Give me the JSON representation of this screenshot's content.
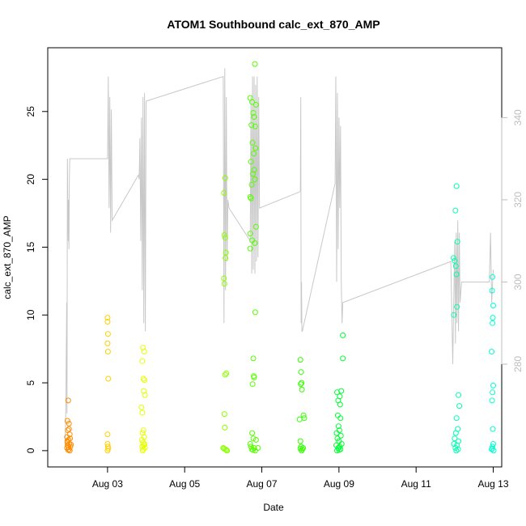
{
  "chart_data": {
    "type": "scatter",
    "title": "ATOM1 Southbound calc_ext_870_AMP",
    "xlabel": "Date",
    "ylabel": "calc_ext_870_AMP",
    "xlim": [
      1.45,
      13.22
    ],
    "ylim": [
      -1.2,
      29.7
    ],
    "y2lim": [
      255,
      357
    ],
    "x_ticks": [
      {
        "value": 3,
        "label": "Aug 03"
      },
      {
        "value": 5,
        "label": "Aug 05"
      },
      {
        "value": 7,
        "label": "Aug 07"
      },
      {
        "value": 9,
        "label": "Aug 09"
      },
      {
        "value": 11,
        "label": "Aug 11"
      },
      {
        "value": 13,
        "label": "Aug 13"
      }
    ],
    "y_ticks": [
      0,
      5,
      10,
      15,
      20,
      25
    ],
    "y2_ticks": [
      280,
      300,
      320,
      340
    ],
    "grid": false,
    "legend": "none",
    "line_color": "#c8c8c8",
    "series": [
      {
        "color": "#ff8c00",
        "points": [
          [
            1.98,
            3.7
          ],
          [
            1.96,
            2.2
          ],
          [
            2.0,
            2.0
          ],
          [
            1.97,
            1.5
          ],
          [
            2.02,
            1.2
          ],
          [
            1.95,
            1.0
          ],
          [
            2.03,
            0.9
          ],
          [
            1.99,
            0.8
          ],
          [
            1.96,
            0.6
          ],
          [
            2.01,
            0.5
          ],
          [
            1.97,
            0.4
          ],
          [
            2.04,
            0.3
          ],
          [
            1.95,
            0.2
          ],
          [
            2.0,
            0.1
          ],
          [
            1.98,
            0.05
          ],
          [
            2.02,
            0.0
          ],
          [
            1.96,
            0.7
          ],
          [
            2.05,
            0.45
          ],
          [
            1.99,
            0.25
          ],
          [
            2.0,
            1.6
          ]
        ]
      },
      {
        "color": "#ffcf00",
        "points": [
          [
            3.0,
            9.8
          ],
          [
            3.0,
            9.5
          ],
          [
            3.01,
            8.6
          ],
          [
            3.0,
            7.9
          ],
          [
            3.01,
            7.3
          ],
          [
            3.02,
            5.3
          ],
          [
            3.0,
            1.2
          ],
          [
            3.0,
            0.5
          ],
          [
            3.01,
            0.3
          ],
          [
            3.02,
            0.15
          ],
          [
            3.0,
            0.0
          ]
        ]
      },
      {
        "color": "#e6ff00",
        "points": [
          [
            3.92,
            7.6
          ],
          [
            3.95,
            7.3
          ],
          [
            3.9,
            6.6
          ],
          [
            3.93,
            5.3
          ],
          [
            3.96,
            5.2
          ],
          [
            3.94,
            4.4
          ],
          [
            3.97,
            4.1
          ],
          [
            3.88,
            3.2
          ],
          [
            3.9,
            2.8
          ],
          [
            3.93,
            1.5
          ],
          [
            3.91,
            1.3
          ],
          [
            3.95,
            1.0
          ],
          [
            3.89,
            0.8
          ],
          [
            3.92,
            0.6
          ],
          [
            3.96,
            0.5
          ],
          [
            3.94,
            0.4
          ],
          [
            3.9,
            0.3
          ],
          [
            3.97,
            0.2
          ],
          [
            3.93,
            0.1
          ],
          [
            3.91,
            0.0
          ]
        ]
      },
      {
        "color": "#8cff00",
        "points": [
          [
            6.05,
            20.1
          ],
          [
            6.02,
            19.0
          ],
          [
            6.03,
            15.9
          ],
          [
            6.05,
            15.7
          ],
          [
            6.07,
            14.6
          ],
          [
            6.06,
            14.2
          ],
          [
            6.02,
            12.7
          ],
          [
            6.03,
            12.3
          ],
          [
            6.08,
            5.7
          ],
          [
            6.05,
            5.6
          ],
          [
            6.03,
            2.7
          ],
          [
            6.04,
            1.7
          ],
          [
            6.0,
            0.2
          ],
          [
            6.05,
            0.1
          ],
          [
            6.08,
            0.05
          ],
          [
            6.1,
            0.0
          ],
          [
            6.02,
            0.15
          ]
        ]
      },
      {
        "color": "#55ff00",
        "points": [
          [
            6.82,
            28.5
          ],
          [
            6.7,
            26.0
          ],
          [
            6.75,
            25.7
          ],
          [
            6.85,
            25.5
          ],
          [
            6.78,
            24.9
          ],
          [
            6.8,
            24.6
          ],
          [
            6.73,
            24.0
          ],
          [
            6.83,
            23.9
          ],
          [
            6.76,
            22.7
          ],
          [
            6.84,
            22.3
          ],
          [
            6.79,
            21.9
          ],
          [
            6.72,
            21.3
          ],
          [
            6.8,
            20.7
          ],
          [
            6.77,
            20.4
          ],
          [
            6.82,
            20.0
          ],
          [
            6.74,
            19.6
          ],
          [
            6.7,
            18.7
          ],
          [
            6.72,
            18.6
          ],
          [
            6.85,
            16.5
          ],
          [
            6.7,
            16.0
          ],
          [
            6.75,
            15.5
          ],
          [
            6.82,
            15.3
          ],
          [
            6.7,
            14.9
          ],
          [
            6.83,
            10.2
          ],
          [
            6.78,
            6.8
          ],
          [
            6.79,
            5.5
          ],
          [
            6.8,
            5.4
          ],
          [
            6.76,
            4.9
          ],
          [
            6.75,
            1.3
          ],
          [
            6.78,
            0.9
          ],
          [
            6.85,
            0.8
          ],
          [
            6.7,
            0.5
          ],
          [
            6.72,
            0.3
          ],
          [
            6.8,
            0.2
          ],
          [
            6.74,
            0.1
          ],
          [
            6.77,
            0.05
          ],
          [
            6.83,
            0.0
          ],
          [
            6.9,
            0.2
          ]
        ]
      },
      {
        "color": "#33ff00",
        "points": [
          [
            8.0,
            6.7
          ],
          [
            8.02,
            5.8
          ],
          [
            8.03,
            5.0
          ],
          [
            8.01,
            4.9
          ],
          [
            8.04,
            4.5
          ],
          [
            8.08,
            2.6
          ],
          [
            8.1,
            2.4
          ],
          [
            7.98,
            2.3
          ],
          [
            8.0,
            0.7
          ],
          [
            8.02,
            0.3
          ],
          [
            8.0,
            0.15
          ],
          [
            8.05,
            0.1
          ],
          [
            8.03,
            0.0
          ],
          [
            8.07,
            0.2
          ]
        ]
      },
      {
        "color": "#00ff33",
        "points": [
          [
            9.1,
            8.5
          ],
          [
            9.1,
            6.8
          ],
          [
            9.06,
            4.4
          ],
          [
            8.95,
            4.3
          ],
          [
            9.02,
            4.0
          ],
          [
            8.98,
            3.7
          ],
          [
            9.03,
            3.4
          ],
          [
            8.97,
            2.6
          ],
          [
            9.04,
            2.4
          ],
          [
            8.99,
            1.8
          ],
          [
            9.01,
            1.5
          ],
          [
            8.94,
            1.3
          ],
          [
            9.05,
            1.1
          ],
          [
            8.96,
            0.9
          ],
          [
            9.0,
            0.7
          ],
          [
            9.07,
            0.5
          ],
          [
            8.93,
            0.4
          ],
          [
            9.02,
            0.3
          ],
          [
            8.98,
            0.2
          ],
          [
            9.04,
            0.1
          ],
          [
            8.95,
            0.0
          ],
          [
            9.0,
            0.05
          ]
        ]
      },
      {
        "color": "#00ffb0",
        "points": [
          [
            12.05,
            19.5
          ],
          [
            12.02,
            17.7
          ],
          [
            12.07,
            15.4
          ],
          [
            11.97,
            14.2
          ],
          [
            12.0,
            14.0
          ],
          [
            12.03,
            13.6
          ],
          [
            12.05,
            13.0
          ],
          [
            12.06,
            10.6
          ],
          [
            11.98,
            10.0
          ],
          [
            12.1,
            4.1
          ],
          [
            12.12,
            3.3
          ],
          [
            12.05,
            2.4
          ],
          [
            12.08,
            1.6
          ],
          [
            12.03,
            1.3
          ],
          [
            12.0,
            0.9
          ],
          [
            12.1,
            0.7
          ],
          [
            11.98,
            0.5
          ],
          [
            12.06,
            0.4
          ],
          [
            12.02,
            0.2
          ],
          [
            12.09,
            0.1
          ],
          [
            12.04,
            0.0
          ]
        ]
      },
      {
        "color": "#00ffd0",
        "points": [
          [
            12.98,
            12.8
          ],
          [
            12.97,
            11.8
          ],
          [
            13.0,
            10.7
          ],
          [
            12.99,
            9.8
          ],
          [
            12.98,
            9.4
          ],
          [
            12.96,
            7.3
          ],
          [
            13.0,
            4.8
          ],
          [
            12.98,
            4.3
          ],
          [
            12.97,
            3.7
          ],
          [
            12.99,
            1.6
          ],
          [
            13.0,
            0.5
          ],
          [
            12.98,
            0.3
          ],
          [
            12.96,
            0.1
          ],
          [
            13.01,
            0.0
          ],
          [
            12.97,
            0.15
          ]
        ]
      }
    ],
    "line": [
      [
        1.9,
        260
      ],
      [
        1.92,
        270
      ],
      [
        1.94,
        295
      ],
      [
        1.95,
        268
      ],
      [
        1.96,
        330
      ],
      [
        1.97,
        318
      ],
      [
        1.98,
        310
      ],
      [
        1.99,
        320
      ],
      [
        2.0,
        308
      ],
      [
        2.01,
        325
      ],
      [
        2.02,
        330
      ],
      [
        3.0,
        330
      ],
      [
        3.02,
        350
      ],
      [
        3.04,
        318
      ],
      [
        3.06,
        345
      ],
      [
        3.08,
        312
      ],
      [
        3.1,
        342
      ],
      [
        3.12,
        315
      ],
      [
        3.8,
        326
      ],
      [
        3.82,
        325
      ],
      [
        3.84,
        335
      ],
      [
        3.86,
        310
      ],
      [
        3.88,
        340
      ],
      [
        3.9,
        298
      ],
      [
        3.92,
        345
      ],
      [
        3.94,
        290
      ],
      [
        3.96,
        346
      ],
      [
        3.98,
        288
      ],
      [
        4.0,
        344
      ],
      [
        6.0,
        350
      ],
      [
        6.02,
        290
      ],
      [
        6.04,
        352
      ],
      [
        6.06,
        298
      ],
      [
        6.08,
        345
      ],
      [
        6.1,
        305
      ],
      [
        6.12,
        320
      ],
      [
        6.15,
        318
      ],
      [
        6.7,
        310
      ],
      [
        6.72,
        345
      ],
      [
        6.74,
        302
      ],
      [
        6.76,
        350
      ],
      [
        6.78,
        303
      ],
      [
        6.8,
        350
      ],
      [
        6.82,
        302
      ],
      [
        6.84,
        348
      ],
      [
        6.86,
        305
      ],
      [
        6.88,
        350
      ],
      [
        6.9,
        306
      ],
      [
        6.92,
        345
      ],
      [
        6.94,
        318
      ],
      [
        8.0,
        322
      ],
      [
        8.01,
        345
      ],
      [
        8.02,
        290
      ],
      [
        8.03,
        300
      ],
      [
        8.04,
        288
      ],
      [
        8.05,
        288
      ],
      [
        8.9,
        324
      ],
      [
        8.92,
        350
      ],
      [
        8.94,
        300
      ],
      [
        8.96,
        346
      ],
      [
        8.98,
        308
      ],
      [
        9.0,
        340
      ],
      [
        9.02,
        318
      ],
      [
        9.04,
        338
      ],
      [
        9.06,
        300
      ],
      [
        9.08,
        290
      ],
      [
        9.1,
        295
      ],
      [
        11.9,
        305
      ],
      [
        11.95,
        280
      ],
      [
        12.0,
        310
      ],
      [
        12.02,
        285
      ],
      [
        12.04,
        312
      ],
      [
        12.06,
        290
      ],
      [
        12.08,
        315
      ],
      [
        12.1,
        288
      ],
      [
        12.12,
        312
      ],
      [
        12.14,
        295
      ],
      [
        12.18,
        300
      ],
      [
        12.9,
        300
      ],
      [
        12.93,
        312
      ],
      [
        12.96,
        295
      ],
      [
        13.0,
        303
      ]
    ]
  }
}
